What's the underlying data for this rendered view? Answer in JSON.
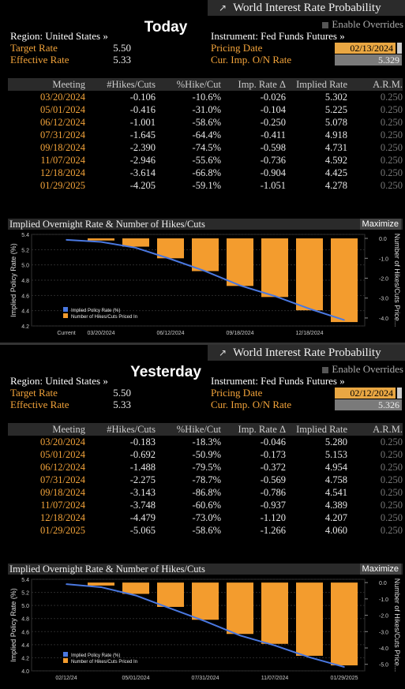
{
  "window": {
    "title": "World Interest Rate Probability",
    "checkbox_label": "Enable Overrides",
    "table_headers": [
      "Meeting",
      "#Hikes/Cuts",
      "%Hike/Cut",
      "Imp. Rate Δ",
      "Implied Rate",
      "A.R.M."
    ],
    "chart_title": "Implied Overnight Rate & Number of Hikes/Cuts",
    "maximize_label": "Maximize",
    "chart_ylabel_left": "Implied Policy Rate (%)",
    "chart_ylabel_right": "Number of Hikes/Cuts Price...",
    "legend_line": "Implied Policy Rate (%)",
    "legend_bar": "Number of Hikes/Cuts Priced In",
    "region_label": "Region: United States »",
    "instrument_label": "Instrument: Fed Funds Futures »",
    "target_rate_label": "Target Rate",
    "effective_rate_label": "Effective Rate",
    "pricing_date_label": "Pricing Date",
    "on_rate_label": "Cur. Imp. O/N Rate"
  },
  "colors": {
    "orange": "#f2a33a",
    "bar": "#f39c2e",
    "line": "#4a78e0",
    "title_bg": "#2b2b2b"
  },
  "snapshots": [
    {
      "day_label": "Today",
      "target_rate": "5.50",
      "effective_rate": "5.33",
      "pricing_date": "02/13/2024",
      "on_rate": "5.329",
      "rows": [
        [
          "03/20/2024",
          "-0.106",
          "-10.6%",
          "-0.026",
          "5.302",
          "0.250"
        ],
        [
          "05/01/2024",
          "-0.416",
          "-31.0%",
          "-0.104",
          "5.225",
          "0.250"
        ],
        [
          "06/12/2024",
          "-1.001",
          "-58.6%",
          "-0.250",
          "5.078",
          "0.250"
        ],
        [
          "07/31/2024",
          "-1.645",
          "-64.4%",
          "-0.411",
          "4.918",
          "0.250"
        ],
        [
          "09/18/2024",
          "-2.390",
          "-74.5%",
          "-0.598",
          "4.731",
          "0.250"
        ],
        [
          "11/07/2024",
          "-2.946",
          "-55.6%",
          "-0.736",
          "4.592",
          "0.250"
        ],
        [
          "12/18/2024",
          "-3.614",
          "-66.8%",
          "-0.904",
          "4.425",
          "0.250"
        ],
        [
          "01/29/2025",
          "-4.205",
          "-59.1%",
          "-1.051",
          "4.278",
          "0.250"
        ]
      ],
      "chart_data": {
        "type": "bar",
        "categories": [
          "Current",
          "03/20/2024",
          "05/01/2024",
          "06/12/2024",
          "07/31/2024",
          "09/18/2024",
          "11/07/2024",
          "12/18/2024",
          "01/29/2025"
        ],
        "x_tick_labels": [
          "Current",
          "03/20/2024",
          "06/12/2024",
          "09/18/2024",
          "12/18/2024"
        ],
        "series": [
          {
            "name": "Implied Policy Rate (%)",
            "type": "line",
            "values": [
              5.329,
              5.302,
              5.225,
              5.078,
              4.918,
              4.731,
              4.592,
              4.425,
              4.278
            ]
          },
          {
            "name": "Number of Hikes/Cuts Priced In",
            "type": "bar",
            "values": [
              null,
              -0.106,
              -0.416,
              -1.001,
              -1.645,
              -2.39,
              -2.946,
              -3.614,
              -4.205
            ]
          }
        ],
        "ylim_left": [
          4.2,
          5.4
        ],
        "yticks_left": [
          "5.4",
          "5.2",
          "5.0",
          "4.8",
          "4.6",
          "4.4",
          "4.2"
        ],
        "ylim_right": [
          -4.4,
          0.2
        ],
        "yticks_right": [
          "0.0",
          "-1.0",
          "-2.0",
          "-3.0",
          "-4.0"
        ],
        "ylabel": "Implied Policy Rate (%)",
        "ylabel_right": "Number of Hikes/Cuts Price...",
        "legend_position": "bottom-left"
      }
    },
    {
      "day_label": "Yesterday",
      "target_rate": "5.50",
      "effective_rate": "5.33",
      "pricing_date": "02/12/2024",
      "on_rate": "5.326",
      "rows": [
        [
          "03/20/2024",
          "-0.183",
          "-18.3%",
          "-0.046",
          "5.280",
          "0.250"
        ],
        [
          "05/01/2024",
          "-0.692",
          "-50.9%",
          "-0.173",
          "5.153",
          "0.250"
        ],
        [
          "06/12/2024",
          "-1.488",
          "-79.5%",
          "-0.372",
          "4.954",
          "0.250"
        ],
        [
          "07/31/2024",
          "-2.275",
          "-78.7%",
          "-0.569",
          "4.758",
          "0.250"
        ],
        [
          "09/18/2024",
          "-3.143",
          "-86.8%",
          "-0.786",
          "4.541",
          "0.250"
        ],
        [
          "11/07/2024",
          "-3.748",
          "-60.6%",
          "-0.937",
          "4.389",
          "0.250"
        ],
        [
          "12/18/2024",
          "-4.479",
          "-73.0%",
          "-1.120",
          "4.207",
          "0.250"
        ],
        [
          "01/29/2025",
          "-5.065",
          "-58.6%",
          "-1.266",
          "4.060",
          "0.250"
        ]
      ],
      "chart_data": {
        "type": "bar",
        "categories": [
          "02/12/24",
          "03/20/2024",
          "05/01/2024",
          "06/12/2024",
          "07/31/2024",
          "09/18/2024",
          "11/07/2024",
          "12/18/2024",
          "01/29/2025"
        ],
        "x_tick_labels": [
          "02/12/24",
          "05/01/2024",
          "07/31/2024",
          "11/07/2024",
          "01/29/2025"
        ],
        "series": [
          {
            "name": "Implied Policy Rate (%)",
            "type": "line",
            "values": [
              5.326,
              5.28,
              5.153,
              4.954,
              4.758,
              4.541,
              4.389,
              4.207,
              4.06
            ]
          },
          {
            "name": "Number of Hikes/Cuts Priced In",
            "type": "bar",
            "values": [
              null,
              -0.183,
              -0.692,
              -1.488,
              -2.275,
              -3.143,
              -3.748,
              -4.479,
              -5.065
            ]
          }
        ],
        "ylim_left": [
          4.0,
          5.4
        ],
        "yticks_left": [
          "5.4",
          "5.2",
          "5.0",
          "4.8",
          "4.6",
          "4.4",
          "4.2",
          "4.0"
        ],
        "ylim_right": [
          -5.4,
          0.2
        ],
        "yticks_right": [
          "0.0",
          "-1.0",
          "-2.0",
          "-3.0",
          "-4.0",
          "-5.0"
        ],
        "ylabel": "Implied Policy Rate (%)",
        "ylabel_right": "Number of Hikes/Cuts Price...",
        "legend_position": "bottom-left"
      }
    }
  ]
}
